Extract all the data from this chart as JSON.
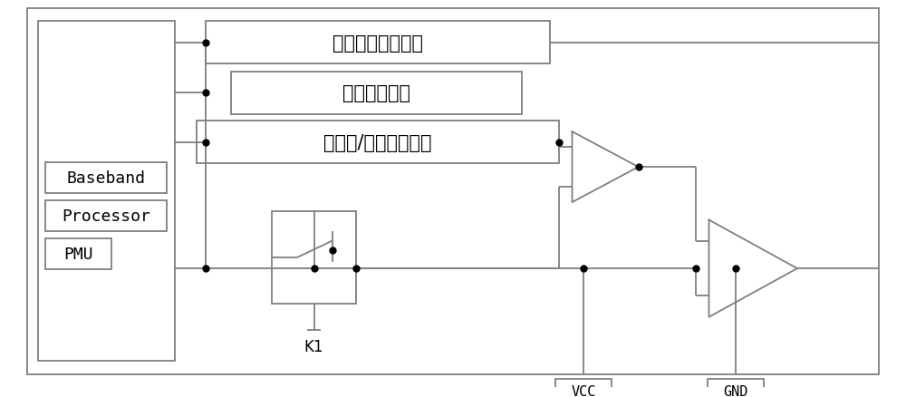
{
  "bg_color": "#ffffff",
  "line_color": "#7f7f7f",
  "text_color": "#000000",
  "dot_color": "#000000",
  "fig_width": 10.0,
  "fig_height": 4.39,
  "dpi": 100,
  "signal1_text": "紧急求助输出信号",
  "signal2_text": "系统开机信号",
  "signal3_text": "系统开/关机状态侁测",
  "label1_text": "Baseband",
  "label2_text": "Processor",
  "label3_text": "PMU",
  "vcc_text": "VCC",
  "gnd_text": "GND",
  "k1_text": "K1",
  "lw": 1.3,
  "dot_size": 5
}
